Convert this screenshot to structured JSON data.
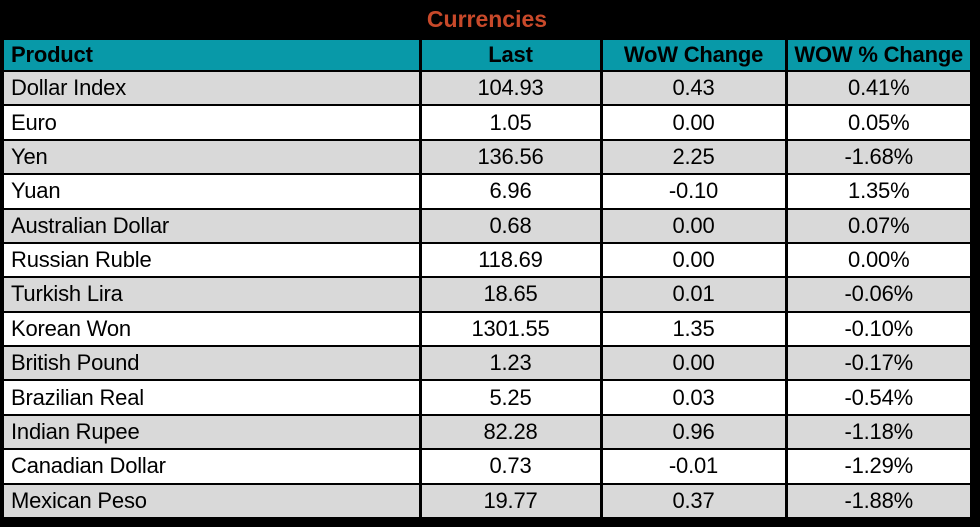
{
  "title": "Currencies",
  "colors": {
    "title": "#C8492A",
    "header_bg": "#0899A8",
    "row_alt_bg": "#D9D9D9",
    "row_bg": "#FFFFFF",
    "frame": "#000000"
  },
  "chart_data": {
    "type": "table",
    "title": "Currencies",
    "columns": [
      "Product",
      "Last",
      "WoW Change",
      "WOW % Change"
    ],
    "rows": [
      [
        "Dollar Index",
        "104.93",
        "0.43",
        "0.41%"
      ],
      [
        "Euro",
        "1.05",
        "0.00",
        "0.05%"
      ],
      [
        "Yen",
        "136.56",
        "2.25",
        "-1.68%"
      ],
      [
        "Yuan",
        "6.96",
        "-0.10",
        "1.35%"
      ],
      [
        "Australian Dollar",
        "0.68",
        "0.00",
        "0.07%"
      ],
      [
        "Russian Ruble",
        "118.69",
        "0.00",
        "0.00%"
      ],
      [
        "Turkish Lira",
        "18.65",
        "0.01",
        "-0.06%"
      ],
      [
        "Korean Won",
        "1301.55",
        "1.35",
        "-0.10%"
      ],
      [
        "British Pound",
        "1.23",
        "0.00",
        "-0.17%"
      ],
      [
        "Brazilian Real",
        "5.25",
        "0.03",
        "-0.54%"
      ],
      [
        "Indian Rupee",
        "82.28",
        "0.96",
        "-1.18%"
      ],
      [
        "Canadian Dollar",
        "0.73",
        "-0.01",
        "-1.29%"
      ],
      [
        "Mexican Peso",
        "19.77",
        "0.37",
        "-1.88%"
      ]
    ]
  }
}
